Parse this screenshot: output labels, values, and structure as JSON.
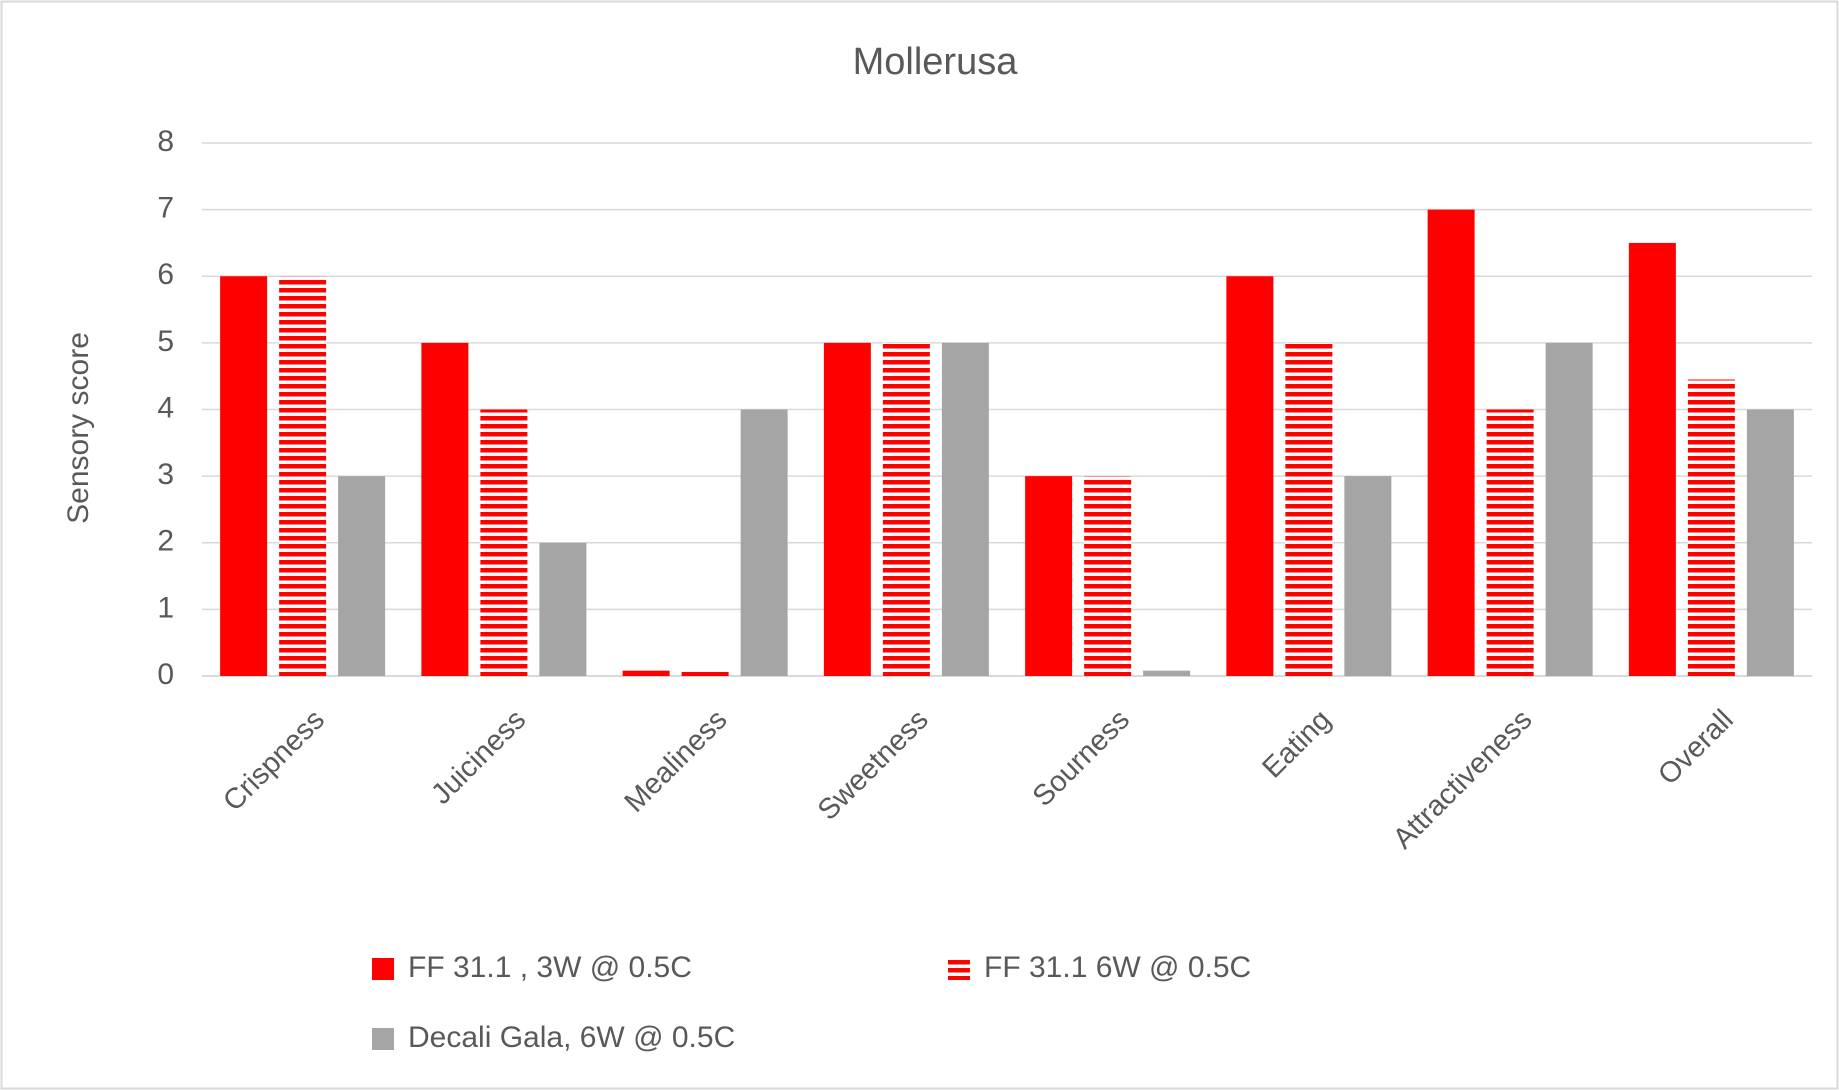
{
  "chart_data": {
    "type": "bar",
    "title": "Mollerusa",
    "y_label": "Sensory score",
    "categories": [
      "Crispness",
      "Juiciness",
      "Mealiness",
      "Sweetness",
      "Sourness",
      "Eating",
      "Attractiveness",
      "Overall"
    ],
    "series": [
      {
        "name": "FF 31.1 , 3W @ 0.5C",
        "color": "#ff0000",
        "values": [
          6,
          5,
          0.08,
          5,
          3,
          6,
          7,
          6.5
        ]
      },
      {
        "name": "FF 31.1 6W @ 0.5C",
        "color": "#ff0000",
        "hatch": true,
        "values": [
          6,
          4,
          0.08,
          5,
          3,
          5,
          4,
          4.45
        ]
      },
      {
        "name": "Decali Gala, 6W @ 0.5C",
        "color": "#a5a5a5",
        "values": [
          3,
          2,
          4,
          5,
          0.08,
          3,
          5,
          4
        ]
      }
    ],
    "ylim": [
      0,
      8
    ],
    "yticks": [
      0,
      1,
      2,
      3,
      4,
      5,
      6,
      7,
      8
    ],
    "grid": true,
    "legend": "bottom"
  }
}
